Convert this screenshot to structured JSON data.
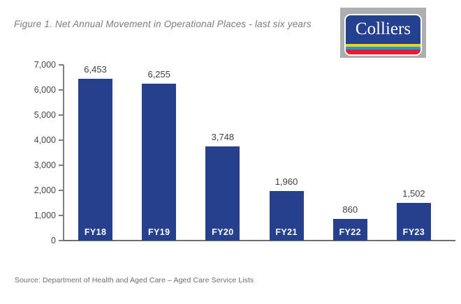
{
  "figure": {
    "title": "Figure 1. Net Annual Movement in Operational Places - last six years"
  },
  "logo": {
    "brand": "Colliers",
    "colors": {
      "panel_bg": "#ADAEB0",
      "card_blue": "#25408F",
      "stripe_yellow": "#FFD200",
      "stripe_cyan": "#00A3DD",
      "stripe_red": "#EC1B2E"
    }
  },
  "chart_data": {
    "type": "bar",
    "title": "Figure 1. Net Annual Movement in Operational Places - last six years",
    "categories": [
      "FY18",
      "FY19",
      "FY20",
      "FY21",
      "FY22",
      "FY23"
    ],
    "values": [
      6453,
      6255,
      3748,
      1960,
      860,
      1502
    ],
    "value_labels": [
      "6,453",
      "6,255",
      "3,748",
      "1,960",
      "860",
      "1,502"
    ],
    "xlabel": "",
    "ylabel": "",
    "ylim": [
      0,
      7000
    ],
    "ytick_step": 1000,
    "ytick_labels": [
      "0",
      "1,000",
      "2,000",
      "3,000",
      "4,000",
      "5,000",
      "6,000",
      "7,000"
    ],
    "grid": false,
    "legend": false,
    "bar_color": "#27408C",
    "value_label_position": "above",
    "category_label_position": "inside-bottom",
    "category_label_color": "#FFFFFF"
  },
  "source": {
    "text": "Source: Department of Health and Aged Care – Aged Care Service Lists"
  }
}
